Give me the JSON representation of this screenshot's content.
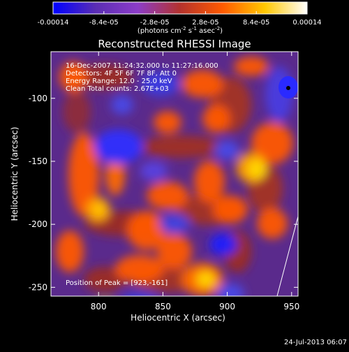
{
  "figure": {
    "title": "Reconstructed RHESSI Image",
    "xlabel": "Heliocentric X (arcsec)",
    "ylabel": "Heliocentric Y (arcsec)",
    "timestamp": "24-Jul-2013 06:07",
    "info_lines": [
      "16-Dec-2007 11:24:32.000 to 11:27:16.000",
      "Detectors: 4F 5F 6F 7F 8F, Att 0",
      "Energy Range: 12.0 - 25.0 keV",
      "Clean      Total counts: 2.67E+03"
    ],
    "peak_label": "Position of Peak = [923,-161]"
  },
  "colorbar": {
    "tick_labels": [
      "-0.00014",
      "-8.4e-05",
      "-2.8e-05",
      "2.8e-05",
      "8.4e-05",
      "0.00014"
    ],
    "tick_values": [
      -0.00014,
      -8.4e-05,
      -2.8e-05,
      2.8e-05,
      8.4e-05,
      0.00014
    ],
    "range": [
      -0.00014,
      0.00014
    ],
    "label_main": "(photons cm",
    "label_sup1": "-2",
    "label_mid": " s",
    "label_sup2": "-1",
    "label_end": " asec",
    "label_sup3": "-2",
    "label_close": ")",
    "colors": [
      "#0000ff",
      "#5a2db4",
      "#8c3cc8",
      "#b4322d",
      "#ff5a00",
      "#ffc800",
      "#ffffff"
    ]
  },
  "chart_data": {
    "type": "heatmap",
    "title": "Reconstructed RHESSI Image",
    "xlabel": "Heliocentric X (arcsec)",
    "ylabel": "Heliocentric Y (arcsec)",
    "xlim": [
      763,
      955
    ],
    "ylim": [
      -257,
      -63
    ],
    "x_ticks": [
      800,
      850,
      900,
      950
    ],
    "y_ticks": [
      -100,
      -150,
      -200,
      -250
    ],
    "x_tick_labels": [
      "800",
      "850",
      "900",
      "950"
    ],
    "y_tick_labels": [
      "-100",
      "-150",
      "-200",
      "-250"
    ],
    "value_range": [
      -0.00014,
      0.00014
    ],
    "peak_position": [
      923,
      -161
    ],
    "grid": false
  }
}
